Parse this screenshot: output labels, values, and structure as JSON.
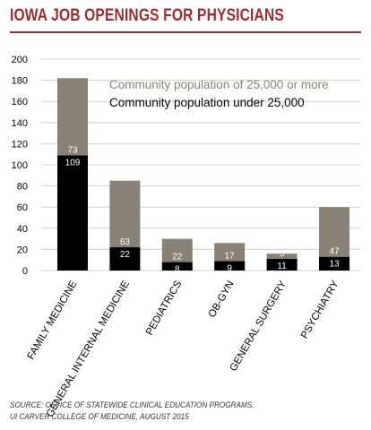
{
  "title": "IOWA JOB OPENINGS FOR PHYSICIANS",
  "colors": {
    "title": "#9e2a2b",
    "rule": "#9e2a2b",
    "community_large": "#8a8175",
    "community_small": "#000000",
    "grid": "#cfcfcf",
    "legend_large_text": "#8a8175",
    "legend_small_text": "#000000",
    "label_on_bar": "#ffffff"
  },
  "source": {
    "line1": "SOURCE: OFFICE OF STATEWIDE CLINICAL EDUCATION PROGRAMS,",
    "line2": "UI CARVER COLLEGE OF MEDICINE, AUGUST 2015"
  },
  "chart_data": {
    "type": "bar",
    "stacked": true,
    "categories": [
      "FAMILY MEDICINE",
      "GENERAL INTERNAL MEDICINE",
      "PEDIATRICS",
      "OB-GYN",
      "GENERAL SURGERY",
      "PSYCHIATRY"
    ],
    "series": [
      {
        "name": "Community population under 25,000",
        "values": [
          109,
          22,
          8,
          9,
          11,
          13
        ]
      },
      {
        "name": "Community population of 25,000 or more",
        "values": [
          73,
          63,
          22,
          17,
          5,
          47
        ]
      }
    ],
    "ylim": [
      0,
      200
    ],
    "yticks": [
      0,
      20,
      40,
      60,
      80,
      100,
      120,
      140,
      160,
      180,
      200
    ],
    "grid": true,
    "legend_position": "top-right",
    "xlabel": "",
    "ylabel": ""
  }
}
